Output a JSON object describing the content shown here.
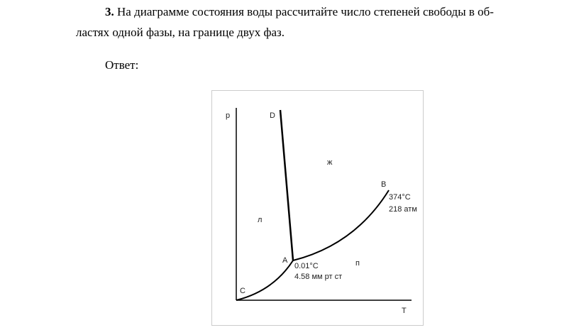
{
  "problem": {
    "number": "3.",
    "line1": "На диаграмме состояния воды рассчитайте число степеней свободы в об-",
    "line2": "ластях одной фазы, на границе двух фаз."
  },
  "answer_label": "Ответ:",
  "diagram": {
    "axis_y": "p",
    "axis_x": "T",
    "point_d": "D",
    "point_a": "A",
    "point_b": "B",
    "point_c": "C",
    "region_liquid": "ж",
    "region_ice": "л",
    "region_vapor": "п",
    "critical_temp": "374°C",
    "critical_pressure": "218 атм",
    "triple_temp": "0.01°C",
    "triple_pressure": "4.58 мм рт ст"
  }
}
